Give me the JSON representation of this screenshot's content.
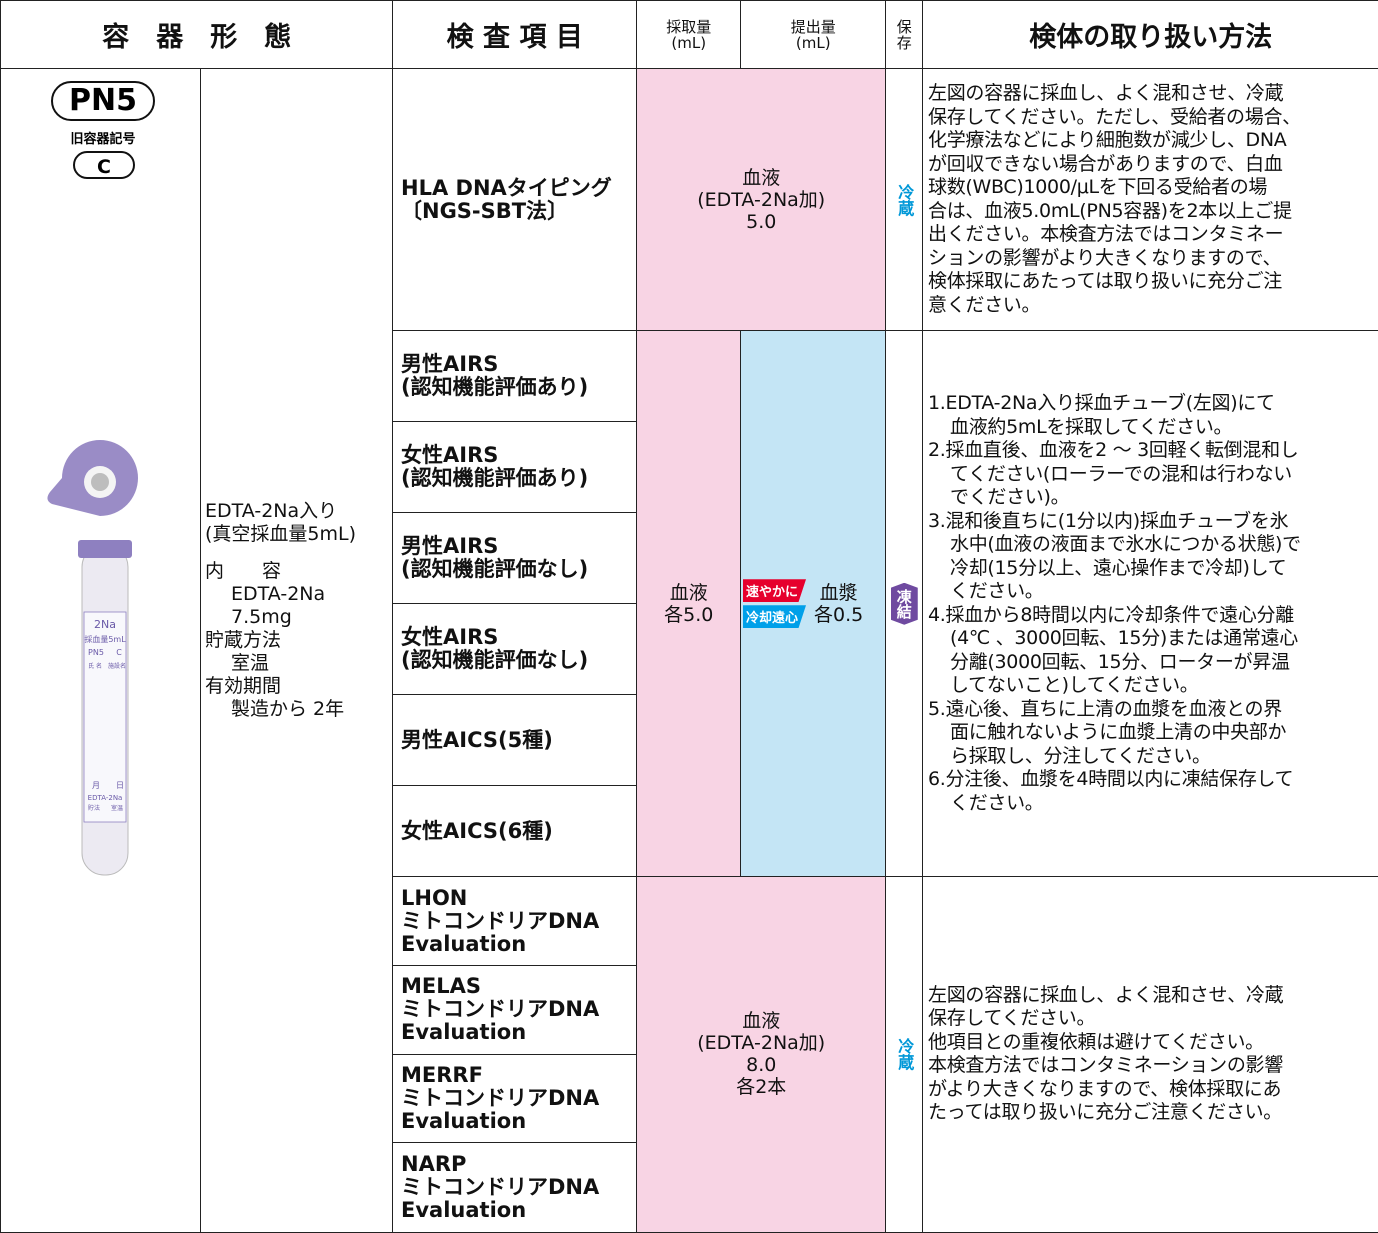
{
  "header": {
    "container": "容　器　形　態",
    "test_item": "検 査 項 目",
    "collection_volume": [
      "採取量",
      "(mL)"
    ],
    "submission_volume": [
      "提出量",
      "(mL)"
    ],
    "storage": [
      "保",
      "存"
    ],
    "handling": "検体の取り扱い方法"
  },
  "container": {
    "code": "PN5",
    "old_code_label": "旧容器記号",
    "old_code": "C",
    "tube_label": [
      "2Na",
      "採血量5mL",
      "PN5",
      "C",
      "氏 名",
      "施設名",
      "月",
      "日",
      "EDTA-2Na",
      "貯法",
      "室温"
    ],
    "description": {
      "lines": [
        "EDTA-2Na入り",
        "(真空採血量5mL)"
      ],
      "details": [
        {
          "label": "内　　容",
          "value": [
            "EDTA-2Na",
            "7.5mg"
          ]
        },
        {
          "label": "貯蔵方法",
          "value": [
            "室温"
          ]
        },
        {
          "label": "有効期間",
          "value": [
            "製造から 2年"
          ]
        }
      ]
    }
  },
  "groups": [
    {
      "tests": [
        [
          "HLA DNAタイピング",
          "〔NGS-SBT法〕"
        ]
      ],
      "collection": [
        "血液",
        "(EDTA-2Na加)",
        "5.0"
      ],
      "storage": "冷蔵",
      "handling": [
        [
          "左図の容器に採血し、よく混和させ、冷蔵",
          "保存してください。ただし、受給者の場合、",
          "化学療法などにより細胞数が減少し、DNA",
          "が回収できない場合がありますので、白血",
          "球数(WBC)1000/μLを下回る受給者の場",
          "合は、血液5.0mL(PN5容器)を2本以上ご提",
          "出ください。本検査方法ではコンタミネー",
          "ションの影響がより大きくなりますので、",
          "検体採取にあたっては取り扱いに充分ご注",
          "意ください。"
        ]
      ]
    },
    {
      "tests": [
        [
          "男性AIRS",
          "(認知機能評価あり)"
        ],
        [
          "女性AIRS",
          "(認知機能評価あり)"
        ],
        [
          "男性AIRS",
          "(認知機能評価なし)"
        ],
        [
          "女性AIRS",
          "(認知機能評価なし)"
        ],
        [
          "男性AICS(5種)"
        ],
        [
          "女性AICS(6種)"
        ]
      ],
      "collection": [
        "血液",
        "各5.0"
      ],
      "submission": {
        "badges": [
          "速やかに",
          "冷却遠心"
        ],
        "lines": [
          "血漿",
          "各0.5"
        ]
      },
      "storage": "凍結",
      "handling": [
        [
          "1.EDTA-2Na入り採血チューブ(左図)にて",
          "血液約5mLを採取してください。"
        ],
        [
          "2.採血直後、血液を2 ～ 3回軽く転倒混和し",
          "てください(ローラーでの混和は行わない",
          "でください)。"
        ],
        [
          "3.混和後直ちに(1分以内)採血チューブを氷",
          "水中(血液の液面まで氷水につかる状態)で",
          "冷却(15分以上、遠心操作まで冷却)して",
          "ください。"
        ],
        [
          "4.採血から8時間以内に冷却条件で遠心分離",
          "(4℃ 、3000回転、15分)または通常遠心",
          "分離(3000回転、15分、ローターが昇温",
          "してないこと)してください。"
        ],
        [
          "5.遠心後、直ちに上清の血漿を血液との界",
          "面に触れないように血漿上清の中央部か",
          "ら採取し、分注してください。"
        ],
        [
          "6.分注後、血漿を4時間以内に凍結保存して",
          "ください。"
        ]
      ]
    },
    {
      "tests": [
        [
          "LHON",
          "ミトコンドリアDNA",
          "Evaluation"
        ],
        [
          "MELAS",
          "ミトコンドリアDNA",
          "Evaluation"
        ],
        [
          "MERRF",
          "ミトコンドリアDNA",
          "Evaluation"
        ],
        [
          "NARP",
          "ミトコンドリアDNA",
          "Evaluation"
        ]
      ],
      "collection": [
        "血液",
        "(EDTA-2Na加)",
        "8.0",
        "各2本"
      ],
      "storage": "冷蔵",
      "handling": [
        [
          "左図の容器に採血し、よく混和させ、冷蔵",
          "保存してください。"
        ],
        [
          "他項目との重複依頼は避けてください。"
        ],
        [
          "本検査方法ではコンタミネーションの影響",
          "がより大きくなりますので、検体採取にあ",
          "たっては取り扱いに充分ご注意ください。"
        ]
      ]
    }
  ]
}
